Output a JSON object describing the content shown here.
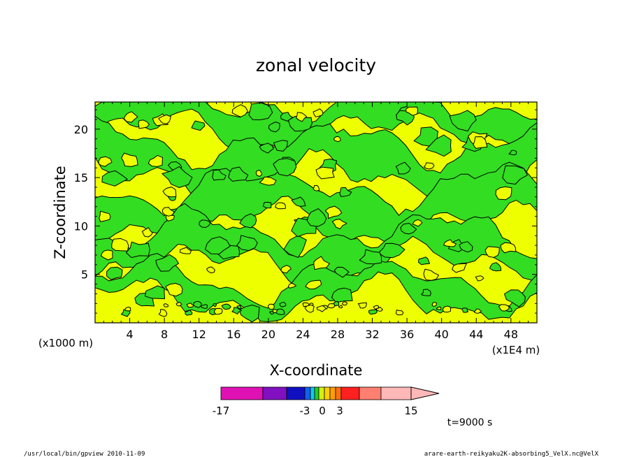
{
  "chart_data": {
    "type": "heatmap",
    "title": "zonal velocity",
    "xlabel": "X-coordinate",
    "ylabel": "Z-coordinate",
    "x_unit": "(x1E4 m)",
    "y_unit": "(x1000 m)",
    "xlim": [
      0,
      51
    ],
    "ylim": [
      0,
      22.8
    ],
    "x_ticks": [
      4,
      8,
      12,
      16,
      20,
      24,
      28,
      32,
      36,
      40,
      44,
      48
    ],
    "y_ticks": [
      5,
      10,
      15,
      20
    ],
    "grid": false,
    "colorbar": {
      "ticks": [
        "-17",
        "-3",
        "0",
        "3",
        "15"
      ],
      "colors": [
        "#e011b4",
        "#8010c0",
        "#1010c0",
        "#1460f0",
        "#10c8f0",
        "#20d020",
        "#d8f010",
        "#ffd000",
        "#ffa000",
        "#ff7010",
        "#ff2020",
        "#ff8070",
        "#ffb8b8"
      ],
      "extend": "max"
    },
    "dominant_ranges": [
      {
        "range": "-3 to 0",
        "color": "#33dd22"
      },
      {
        "range": "0 to 1",
        "color": "#eeff00"
      }
    ],
    "time_label": "t=9000 s"
  },
  "footer": {
    "left": "/usr/local/bin/gpview  2010-11-09",
    "right": "arare-earth-reikyaku2K-absorbing5_VelX.nc@VelX"
  }
}
